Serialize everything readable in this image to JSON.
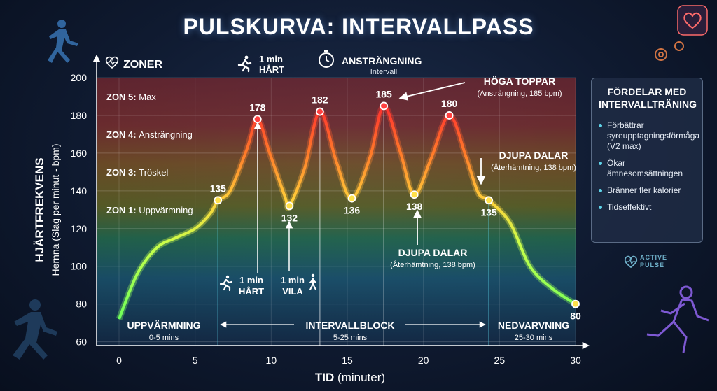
{
  "title": "PULSKURVA: INTERVALLPASS",
  "colors": {
    "zone5": "#8e2a2e",
    "zone4": "#a1382a",
    "zone3": "#9c6b1c",
    "zone2": "#6e7a1f",
    "zone1": "#2b8a5a",
    "zone0": "#1f5f8a",
    "accent": "#5fd3e8",
    "curve_low": "#7dff6a",
    "curve_high": "#ff3030"
  },
  "chart_data": {
    "type": "line",
    "xlabel_bold": "TID",
    "xlabel_rest": "(minuter)",
    "ylabel_bold": "HJÄRTFREKVENS",
    "ylabel_rest": "Hernna (Slag per minut - bpm)",
    "xlim": [
      0,
      30
    ],
    "ylim": [
      58,
      200
    ],
    "xticks": [
      0,
      5,
      10,
      15,
      20,
      25,
      30
    ],
    "yticks": [
      60,
      80,
      100,
      120,
      140,
      160,
      180,
      200
    ],
    "grid": true,
    "series": [
      {
        "x": [
          0,
          1.2,
          2.5,
          3.7,
          5,
          6,
          6.5,
          7.3,
          8.4,
          9.1,
          9.9,
          10.9,
          11.2,
          12.2,
          13.2,
          14.3,
          15.3,
          16.5,
          17.4,
          18.5,
          19.4,
          20.5,
          21.7,
          22.8,
          23.6,
          24.3,
          25.7,
          27,
          28.5,
          30
        ],
        "y": [
          72,
          96,
          110,
          115,
          120,
          128,
          135,
          140,
          162,
          178,
          160,
          137,
          132,
          152,
          182,
          155,
          136,
          158,
          185,
          160,
          138,
          157,
          180,
          158,
          139,
          135,
          123,
          100,
          88,
          80
        ]
      }
    ],
    "zones": [
      {
        "label_bold": "ZON 5:",
        "label_rest": "Max",
        "from": 180,
        "to": 200
      },
      {
        "label_bold": "ZON 4:",
        "label_rest": "Ansträngning",
        "from": 160,
        "to": 180
      },
      {
        "label_bold": "ZON 3:",
        "label_rest": "Tröskel",
        "from": 140,
        "to": 160
      },
      {
        "label_bold": "ZON 1:",
        "label_rest": "Uppvärmning",
        "from": 120,
        "to": 140
      }
    ],
    "zones_header": "ZONER",
    "point_labels": [
      {
        "x": 6.5,
        "y": 135,
        "text": "135",
        "pos": "above"
      },
      {
        "x": 9.1,
        "y": 178,
        "text": "178",
        "pos": "above"
      },
      {
        "x": 11.2,
        "y": 132,
        "text": "132",
        "pos": "below"
      },
      {
        "x": 13.2,
        "y": 182,
        "text": "182",
        "pos": "above"
      },
      {
        "x": 15.3,
        "y": 136,
        "text": "136",
        "pos": "below"
      },
      {
        "x": 17.4,
        "y": 185,
        "text": "185",
        "pos": "above"
      },
      {
        "x": 19.4,
        "y": 138,
        "text": "138",
        "pos": "below"
      },
      {
        "x": 21.7,
        "y": 180,
        "text": "180",
        "pos": "above"
      },
      {
        "x": 24.3,
        "y": 135,
        "text": "135",
        "pos": "below"
      },
      {
        "x": 30,
        "y": 80,
        "text": "80",
        "pos": "below"
      }
    ],
    "phases": [
      {
        "name": "UPPVÄRMNING",
        "sub": "0-5 mins"
      },
      {
        "name": "INTERVALLBLOCK",
        "sub": "5-25 mins"
      },
      {
        "name": "NEDVARVNING",
        "sub": "25-30 mins"
      }
    ],
    "annotations": {
      "top_hard": {
        "line1": "1 min",
        "line2": "HÅRT"
      },
      "effort": {
        "title": "ANSTRÄNGNING",
        "sub": "Intervall"
      },
      "peaks": {
        "title": "HÖGA TOPPAR",
        "sub": "(Ansträngning, 185 bpm)"
      },
      "valleys_right": {
        "title": "DJUPA DALAR",
        "sub": "(Återhämtning, 138 bpm)"
      },
      "valleys_center": {
        "title": "DJUPA DALAR",
        "sub": "(Återhämtning, 138 bpm)"
      },
      "bottom_hard": {
        "line1": "1 min",
        "line2": "HÅRT"
      },
      "bottom_rest": {
        "line1": "1 min",
        "line2": "VILA"
      }
    }
  },
  "benefits": {
    "title": "FÖRDELAR MED INTERVALLTRÄNING",
    "items": [
      "Förbättrar syreupptagningsförmåga (V2 max)",
      "Ökar ämnesomsättningen",
      "Bränner fler kalorier",
      "Tidseffektivt"
    ]
  },
  "brand": {
    "line1": "ACTIVE",
    "line2": "PULSE"
  },
  "icons": [
    "heart-icon",
    "runner-icon",
    "stopwatch-icon",
    "walker-icon"
  ]
}
